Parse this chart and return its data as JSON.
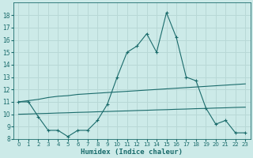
{
  "xlabel": "Humidex (Indice chaleur)",
  "background_color": "#cceae8",
  "grid_color": "#b8d8d6",
  "line_color": "#1a6b6b",
  "x_main": [
    0,
    1,
    2,
    3,
    4,
    5,
    6,
    7,
    8,
    9,
    10,
    11,
    12,
    13,
    14,
    15,
    16,
    17,
    18,
    19,
    20,
    21,
    22,
    23
  ],
  "y_main": [
    11.0,
    11.0,
    9.8,
    8.7,
    8.7,
    8.2,
    8.7,
    8.7,
    9.5,
    10.8,
    13.0,
    15.0,
    15.5,
    16.5,
    15.0,
    18.2,
    16.2,
    13.0,
    12.7,
    10.5,
    9.2,
    9.5,
    8.5,
    8.5
  ],
  "y_upper": [
    11.0,
    11.1,
    11.2,
    11.35,
    11.45,
    11.5,
    11.6,
    11.65,
    11.7,
    11.75,
    11.8,
    11.85,
    11.9,
    11.95,
    12.0,
    12.05,
    12.1,
    12.15,
    12.2,
    12.25,
    12.3,
    12.35,
    12.4,
    12.45
  ],
  "y_lower": [
    10.0,
    10.02,
    10.05,
    10.07,
    10.1,
    10.12,
    10.15,
    10.17,
    10.2,
    10.22,
    10.25,
    10.27,
    10.3,
    10.32,
    10.35,
    10.37,
    10.4,
    10.42,
    10.45,
    10.47,
    10.5,
    10.52,
    10.55,
    10.57
  ],
  "ylim": [
    8,
    19
  ],
  "xlim": [
    -0.5,
    23.5
  ],
  "yticks": [
    8,
    9,
    10,
    11,
    12,
    13,
    14,
    15,
    16,
    17,
    18
  ],
  "xticks": [
    0,
    1,
    2,
    3,
    4,
    5,
    6,
    7,
    8,
    9,
    10,
    11,
    12,
    13,
    14,
    15,
    16,
    17,
    18,
    19,
    20,
    21,
    22,
    23
  ],
  "xtick_labels": [
    "0",
    "1",
    "2",
    "3",
    "4",
    "5",
    "6",
    "7",
    "8",
    "9",
    "10",
    "11",
    "12",
    "13",
    "14",
    "15",
    "16",
    "17",
    "18",
    "19",
    "20",
    "21",
    "22",
    "23"
  ]
}
